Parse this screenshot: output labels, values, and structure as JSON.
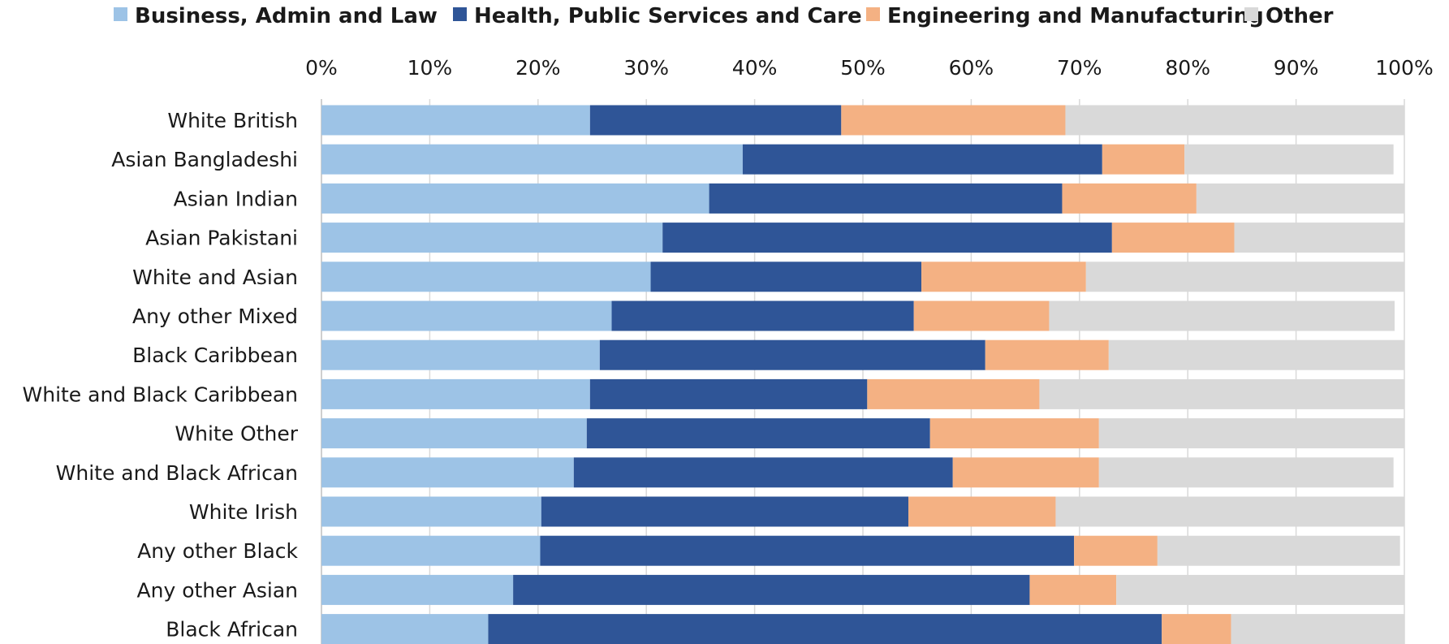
{
  "chart_data": {
    "type": "bar",
    "orientation": "horizontal",
    "stacked": true,
    "xlim": [
      0,
      100
    ],
    "x_ticks": [
      "0%",
      "10%",
      "20%",
      "30%",
      "40%",
      "50%",
      "60%",
      "70%",
      "80%",
      "90%",
      "100%"
    ],
    "x_axis_position": "top",
    "grid": true,
    "legend_position": "top",
    "categories": [
      "White British",
      "Asian Bangladeshi",
      "Asian Indian",
      "Asian Pakistani",
      "White and Asian",
      "Any other Mixed",
      "Black Caribbean",
      "White and Black Caribbean",
      "White Other",
      "White and Black African",
      "White Irish",
      "Any other Black",
      "Any other Asian",
      "Black African"
    ],
    "series": [
      {
        "name": "Business, Admin and Law",
        "color": "#9dc3e6",
        "values": [
          24.8,
          38.9,
          35.8,
          31.5,
          30.4,
          26.8,
          25.7,
          24.8,
          24.5,
          23.3,
          20.3,
          20.2,
          17.7,
          15.4
        ]
      },
      {
        "name": "Health, Public Services and Care",
        "color": "#2f5597",
        "values": [
          23.2,
          33.2,
          32.6,
          41.5,
          25.0,
          27.9,
          35.6,
          25.6,
          31.7,
          35.0,
          33.9,
          49.3,
          47.7,
          62.2
        ]
      },
      {
        "name": "Engineering and Manufacturing",
        "color": "#f4b183",
        "values": [
          20.7,
          7.6,
          12.4,
          11.3,
          15.2,
          12.5,
          11.4,
          15.9,
          15.6,
          13.5,
          13.6,
          7.7,
          8.0,
          6.4
        ]
      },
      {
        "name": "Other",
        "color": "#d9d9d9",
        "values": [
          31.3,
          19.3,
          19.2,
          15.7,
          29.4,
          31.9,
          27.3,
          33.7,
          28.2,
          27.2,
          32.2,
          22.4,
          26.6,
          16.0
        ]
      }
    ]
  }
}
